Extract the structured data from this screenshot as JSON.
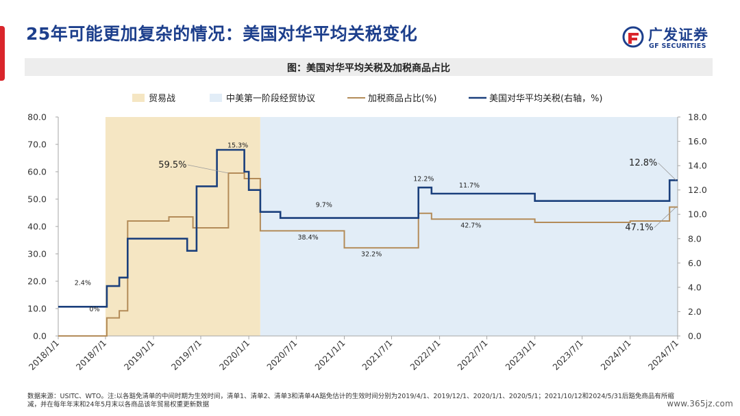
{
  "header": {
    "title": "25年可能更加复杂的情况：美国对华平均关税变化",
    "brand_cn": "广发证券",
    "brand_en": "GF SECURITIES",
    "brand_color": "#1d3f8c",
    "accent_color": "#d9252b"
  },
  "figure": {
    "title": "图：美国对华平均关税及加税商品占比"
  },
  "chart_data": {
    "type": "line",
    "legend_position": "top",
    "legend": [
      {
        "label": "贸易战",
        "kind": "band",
        "color": "#f5e6c3"
      },
      {
        "label": "中美第一阶段经贸协议",
        "kind": "band",
        "color": "#e2edf7"
      },
      {
        "label": "加税商品占比(%)",
        "kind": "line",
        "color": "#b38b58"
      },
      {
        "label": "美国对华平均关税(右轴，%)",
        "kind": "line",
        "color": "#1a3f7c"
      }
    ],
    "x_ticks": [
      "2018/1/1",
      "2018/7/1",
      "2019/1/1",
      "2019/7/1",
      "2020/1/1",
      "2020/7/1",
      "2021/1/1",
      "2021/7/1",
      "2022/1/1",
      "2022/7/1",
      "2023/1/1",
      "2023/7/1",
      "2024/1/1",
      "2024/7/1"
    ],
    "y_left": {
      "ticks": [
        "0.0",
        "10.0",
        "20.0",
        "30.0",
        "40.0",
        "50.0",
        "60.0",
        "70.0",
        "80.0"
      ],
      "min": 0,
      "max": 80
    },
    "y_right": {
      "ticks": [
        "0.0",
        "2.0",
        "4.0",
        "6.0",
        "8.0",
        "10.0",
        "12.0",
        "14.0",
        "16.0",
        "18.0"
      ],
      "min": 0,
      "max": 18
    },
    "bands": [
      {
        "label": "贸易战",
        "start": "2018/7/1",
        "end": "2020/2/14",
        "color": "#f5e6c3"
      },
      {
        "label": "中美第一阶段经贸协议",
        "start": "2020/2/14",
        "end": "2024/8/1",
        "color": "#e2edf7"
      }
    ],
    "series": [
      {
        "name": "加税商品占比(%)",
        "axis": "left",
        "color": "#b38b58",
        "points": [
          [
            "2018/1/1",
            0
          ],
          [
            "2018/7/6",
            0
          ],
          [
            "2018/7/6",
            6.6
          ],
          [
            "2018/8/23",
            6.6
          ],
          [
            "2018/8/23",
            9.2
          ],
          [
            "2018/9/24",
            9.2
          ],
          [
            "2018/9/24",
            42
          ],
          [
            "2019/3/1",
            42
          ],
          [
            "2019/3/1",
            43.5
          ],
          [
            "2019/6/1",
            43.5
          ],
          [
            "2019/6/1",
            39.5
          ],
          [
            "2019/10/15",
            39.5
          ],
          [
            "2019/10/15",
            59.5
          ],
          [
            "2019/12/15",
            59.5
          ],
          [
            "2019/12/15",
            57.5
          ],
          [
            "2020/2/14",
            57.5
          ],
          [
            "2020/2/14",
            38.4
          ],
          [
            "2021/1/1",
            38.4
          ],
          [
            "2021/1/1",
            32.2
          ],
          [
            "2021/10/12",
            32.2
          ],
          [
            "2021/10/12",
            44.8
          ],
          [
            "2021/12/1",
            44.8
          ],
          [
            "2021/12/1",
            42.7
          ],
          [
            "2023/1/1",
            42.7
          ],
          [
            "2023/1/1",
            41.5
          ],
          [
            "2024/1/1",
            41.5
          ],
          [
            "2024/1/1",
            42
          ],
          [
            "2024/5/31",
            42
          ],
          [
            "2024/5/31",
            47.1
          ],
          [
            "2024/7/1",
            47.1
          ]
        ]
      },
      {
        "name": "美国对华平均关税(右轴，%)",
        "axis": "right",
        "color": "#1a3f7c",
        "points": [
          [
            "2018/1/1",
            2.4
          ],
          [
            "2018/7/6",
            2.4
          ],
          [
            "2018/7/6",
            4.1
          ],
          [
            "2018/8/23",
            4.1
          ],
          [
            "2018/8/23",
            4.8
          ],
          [
            "2018/9/24",
            4.8
          ],
          [
            "2018/9/24",
            8.0
          ],
          [
            "2019/5/10",
            8.0
          ],
          [
            "2019/5/10",
            7.0
          ],
          [
            "2019/6/15",
            7.0
          ],
          [
            "2019/6/15",
            12.3
          ],
          [
            "2019/9/1",
            12.3
          ],
          [
            "2019/9/1",
            15.3
          ],
          [
            "2019/12/15",
            15.3
          ],
          [
            "2019/12/15",
            13.5
          ],
          [
            "2020/1/1",
            13.5
          ],
          [
            "2020/1/1",
            12.0
          ],
          [
            "2020/2/14",
            12.0
          ],
          [
            "2020/2/14",
            10.2
          ],
          [
            "2020/5/1",
            10.2
          ],
          [
            "2020/5/1",
            9.7
          ],
          [
            "2021/10/12",
            9.7
          ],
          [
            "2021/10/12",
            12.2
          ],
          [
            "2021/12/1",
            12.2
          ],
          [
            "2021/12/1",
            11.7
          ],
          [
            "2023/1/1",
            11.7
          ],
          [
            "2023/1/1",
            11.1
          ],
          [
            "2024/5/31",
            11.1
          ],
          [
            "2024/5/31",
            12.8
          ],
          [
            "2024/7/1",
            12.8
          ]
        ]
      }
    ],
    "annotations": [
      {
        "text": "2.4%",
        "series": 1,
        "x": "2018/4/5",
        "y": 4.2,
        "anchor": "middle",
        "size": 9.5
      },
      {
        "text": "0%",
        "series": 0,
        "x": "2018/5/20",
        "y": 9,
        "anchor": "middle",
        "size": 9.5
      },
      {
        "text": "59.5%",
        "series": 0,
        "x": "2019/3/15",
        "y": 61.5,
        "anchor": "middle",
        "size": 13,
        "leader_to": [
          "2019/10/15",
          59.5
        ]
      },
      {
        "text": "15.3%",
        "series": 1,
        "x": "2019/11/20",
        "y": 15.5,
        "anchor": "middle",
        "size": 9.5
      },
      {
        "text": "38.4%",
        "series": 0,
        "x": "2020/8/15",
        "y": 35.3,
        "anchor": "middle",
        "size": 9.5
      },
      {
        "text": "9.7%",
        "series": 1,
        "x": "2020/10/15",
        "y": 10.6,
        "anchor": "middle",
        "size": 9.5
      },
      {
        "text": "32.2%",
        "series": 0,
        "x": "2021/4/15",
        "y": 29.1,
        "anchor": "middle",
        "size": 9.5
      },
      {
        "text": "12.2%",
        "series": 1,
        "x": "2021/11/1",
        "y": 12.75,
        "anchor": "middle",
        "size": 9.5
      },
      {
        "text": "11.7%",
        "series": 1,
        "x": "2022/4/25",
        "y": 12.2,
        "anchor": "middle",
        "size": 9.5
      },
      {
        "text": "42.7%",
        "series": 0,
        "x": "2022/5/1",
        "y": 39.6,
        "anchor": "middle",
        "size": 9.5
      },
      {
        "text": "12.8%",
        "series": 1,
        "x": "2024/2/20",
        "y": 14.0,
        "anchor": "middle",
        "size": 13,
        "leader_to": [
          "2024/6/25",
          12.8
        ]
      },
      {
        "text": "47.1%",
        "series": 0,
        "x": "2024/2/5",
        "y": 38.6,
        "anchor": "middle",
        "size": 13,
        "leader_to": [
          "2024/6/25",
          47.1
        ]
      }
    ]
  },
  "footer": {
    "source": "数据来源：USITC、WTO。注:以各豁免清单的中间时期为生效时间，清单1、清单2、清单3和清单4A豁免估计的生效时间分别为2019/4/1、2019/12/1、2020/1/1、2020/5/1；2021/10/12和2024/5/31后豁免商品有所缩减，并在每年年末和24年5月末以各商品该年贸易权重更新数据",
    "watermark": "www.365jz.com"
  }
}
